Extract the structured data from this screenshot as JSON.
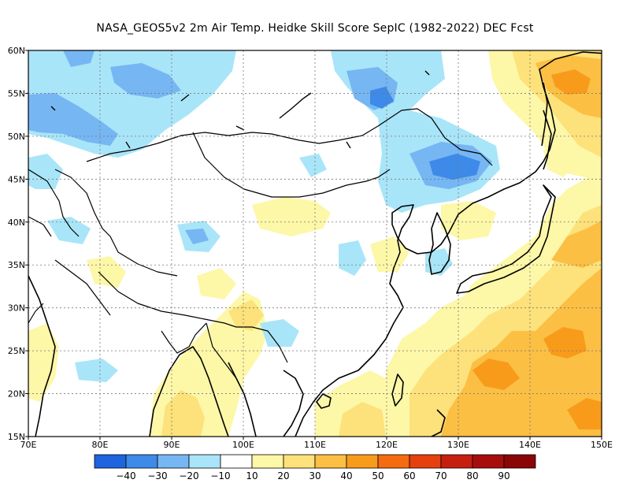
{
  "title": "NASA_GEOS5v2  2m Air Temp. Heidke Skill Score SepIC (1982-2022) DEC Fcst",
  "map": {
    "lon_range": [
      70,
      150
    ],
    "lat_range": [
      15,
      60
    ],
    "lon_ticks": [
      "70E",
      "80E",
      "90E",
      "100E",
      "110E",
      "120E",
      "130E",
      "140E",
      "150E"
    ],
    "lat_ticks": [
      "15N",
      "20N",
      "25N",
      "30N",
      "35N",
      "40N",
      "45N",
      "50N",
      "55N",
      "60N"
    ],
    "grid": "dotted",
    "colors": {
      "n40": "#1f64df",
      "n30": "#3d8ae8",
      "n20": "#76b6f3",
      "n10": "#a9e5f8",
      "zero": "#ffffff",
      "p10": "#fdf7a8",
      "p20": "#fde17a",
      "p30": "#fbbf44",
      "p40": "#f89b1b",
      "p50": "#f56b10",
      "p60": "#e6400f",
      "p70": "#c71f0f",
      "p80": "#a70d0d"
    }
  },
  "colorbar": {
    "labels": [
      "−40",
      "−30",
      "−20",
      "−10",
      "10",
      "20",
      "30",
      "40",
      "50",
      "60",
      "70",
      "80",
      "90"
    ],
    "colors": [
      "#1f64df",
      "#3d8ae8",
      "#76b6f3",
      "#a9e5f8",
      "#ffffff",
      "#fdf7a8",
      "#fde17a",
      "#fbbf44",
      "#f89b1b",
      "#f56b10",
      "#e6400f",
      "#c71f0f",
      "#a70d0d",
      "#8a0505"
    ]
  }
}
